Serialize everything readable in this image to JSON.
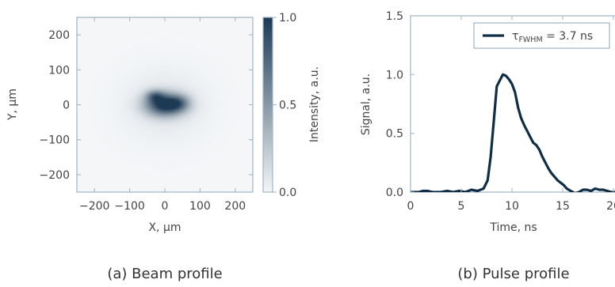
{
  "chart_data": [
    {
      "type": "heatmap",
      "caption": "(a) Beam profile",
      "xlabel": "X, μm",
      "ylabel": "Y, μm",
      "xlim": [
        -250,
        250
      ],
      "ylim": [
        -250,
        250
      ],
      "xticks": [
        -200,
        -100,
        0,
        100,
        200
      ],
      "xtick_labels": [
        "−200",
        "−100",
        "0",
        "100",
        "200"
      ],
      "yticks": [
        200,
        100,
        0,
        -100,
        -200
      ],
      "ytick_labels": [
        "200",
        "100",
        "0",
        "−100",
        "−200"
      ],
      "colorbar": {
        "label": "Intensity, a.u.",
        "range": [
          0.0,
          1.0
        ],
        "ticks": [
          1.0,
          0.5,
          0.0
        ],
        "tick_labels": [
          "1.0",
          "0.5",
          "0.0"
        ],
        "color_low": "#f4f6f8",
        "color_high": "#1c3a54"
      },
      "blobs": [
        {
          "x": 0,
          "y": 0,
          "sx": 38,
          "sy": 22,
          "amp": 1.0
        },
        {
          "x": -28,
          "y": 25,
          "sx": 18,
          "sy": 12,
          "amp": 0.45
        },
        {
          "x": 40,
          "y": 5,
          "sx": 22,
          "sy": 16,
          "amp": 0.35
        },
        {
          "x": 0,
          "y": 0,
          "sx": 80,
          "sy": 70,
          "amp": 0.08
        }
      ]
    },
    {
      "type": "line",
      "caption": "(b) Pulse profile",
      "xlabel": "Time, ns",
      "ylabel": "Signal, a.u.",
      "xlim": [
        0,
        20
      ],
      "ylim": [
        0.0,
        1.5
      ],
      "xticks": [
        0,
        5,
        10,
        15,
        20
      ],
      "xtick_labels": [
        "0",
        "5",
        "10",
        "15",
        "20"
      ],
      "yticks": [
        0.0,
        0.5,
        1.0,
        1.5
      ],
      "ytick_labels": [
        "0.0",
        "0.5",
        "1.0",
        "1.5"
      ],
      "legend": {
        "position": "top-right",
        "tau": "τ",
        "sub": "FWHM",
        "value": " = 3.7 ns"
      },
      "line_color": "#0f2d45",
      "series": [
        {
          "x": [
            0,
            0.8,
            1.2,
            1.7,
            2.2,
            3,
            3.6,
            4.2,
            4.8,
            5.4,
            6,
            6.6,
            7.2,
            7.6,
            7.9,
            8.2,
            8.5,
            8.8,
            9.1,
            9.4,
            9.7,
            10.0,
            10.3,
            10.6,
            10.9,
            11.2,
            11.5,
            11.8,
            12.1,
            12.4,
            12.7,
            13.0,
            13.3,
            13.6,
            13.9,
            14.2,
            14.5,
            14.8,
            15.1,
            15.4,
            15.8,
            16.2,
            16.6,
            17.0,
            17.4,
            17.8,
            18.2,
            18.6,
            19.0,
            19.4,
            19.8,
            20.2
          ],
          "y": [
            0.0,
            0.0,
            0.01,
            0.01,
            0.0,
            0.0,
            0.01,
            0.0,
            0.01,
            0.0,
            0.02,
            0.01,
            0.03,
            0.1,
            0.3,
            0.6,
            0.9,
            0.95,
            1.0,
            0.99,
            0.96,
            0.92,
            0.85,
            0.72,
            0.63,
            0.57,
            0.52,
            0.47,
            0.42,
            0.4,
            0.36,
            0.3,
            0.25,
            0.2,
            0.16,
            0.13,
            0.1,
            0.08,
            0.06,
            0.03,
            0.01,
            -0.01,
            0.0,
            0.02,
            0.02,
            0.01,
            0.03,
            0.02,
            0.02,
            0.01,
            0.0,
            0.0
          ]
        }
      ]
    }
  ]
}
